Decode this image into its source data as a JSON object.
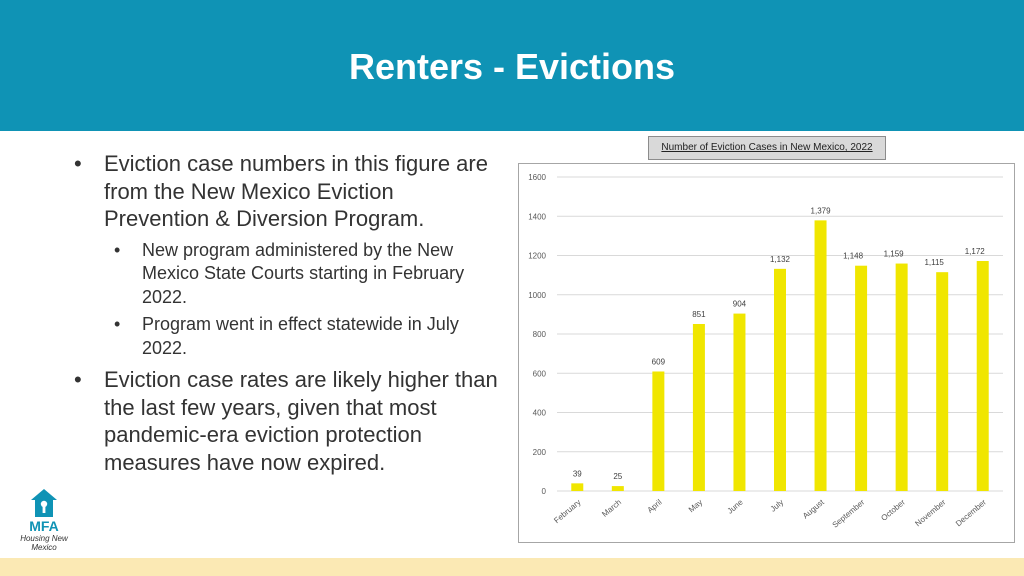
{
  "slide": {
    "title": "Renters - Evictions"
  },
  "bullets": [
    {
      "level": 1,
      "text": "Eviction case numbers in this figure are from the New Mexico Eviction Prevention & Diversion Program."
    },
    {
      "level": 2,
      "text": "New program administered by the New Mexico State Courts starting in February 2022."
    },
    {
      "level": 2,
      "text": "Program went in effect statewide in July 2022."
    },
    {
      "level": 1,
      "text": "Eviction case rates are likely higher than the last few years, given that most pandemic-era eviction protection measures have now expired."
    }
  ],
  "logo": {
    "name": "MFA",
    "tagline": "Housing New Mexico"
  },
  "colors": {
    "header": "#0f93b5",
    "bar": "#f0e600",
    "footer": "#fbe9b4"
  },
  "chart_data": {
    "type": "bar",
    "title": "Number of Eviction Cases in New Mexico, 2022",
    "categories": [
      "February",
      "March",
      "April",
      "May",
      "June",
      "July",
      "August",
      "September",
      "October",
      "November",
      "December"
    ],
    "values": [
      39,
      25,
      609,
      851,
      904,
      1132,
      1379,
      1148,
      1159,
      1115,
      1172
    ],
    "value_labels": [
      "39",
      "25",
      "609",
      "851",
      "904",
      "1,132",
      "1,379",
      "1,148",
      "1,159",
      "1,115",
      "1,172"
    ],
    "yticks": [
      "0",
      "200",
      "400",
      "600",
      "800",
      "1000",
      "1200",
      "1400",
      "1600"
    ],
    "ylim": [
      0,
      1600
    ],
    "grid": true,
    "xlabel": "",
    "ylabel": ""
  }
}
